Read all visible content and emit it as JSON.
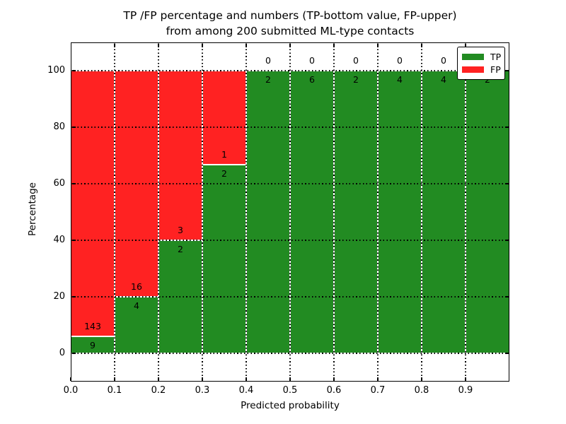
{
  "chart_data": {
    "type": "bar",
    "stacked": true,
    "title_line1": "TP /FP percentage and numbers (TP-bottom value, FP-upper)",
    "title_line2": "from among 200 submitted ML-type contacts",
    "xlabel": "Predicted probability",
    "ylabel": "Percentage",
    "xlim": [
      0,
      1.0
    ],
    "ylim": [
      -10,
      110
    ],
    "yticks": [
      0,
      20,
      40,
      60,
      80,
      100
    ],
    "xtick_labels": [
      "0.0",
      "0.1",
      "0.2",
      "0.3",
      "0.4",
      "0.5",
      "0.6",
      "0.7",
      "0.8",
      "0.9"
    ],
    "bin_starts": [
      0.0,
      0.1,
      0.2,
      0.3,
      0.4,
      0.5,
      0.6,
      0.7,
      0.8,
      0.9
    ],
    "bin_width": 0.1,
    "grid": "dotted both axes, drawn over bars",
    "bar_edge_color": "#ffffff",
    "series": [
      {
        "name": "TP",
        "color": "#228b22",
        "counts": [
          9,
          4,
          2,
          2,
          2,
          6,
          2,
          4,
          4,
          2
        ]
      },
      {
        "name": "FP",
        "color": "#ff2222",
        "counts": [
          143,
          16,
          3,
          1,
          0,
          0,
          0,
          0,
          0,
          0
        ]
      }
    ],
    "tp_percent_per_bin": [
      5.9,
      20.0,
      40.0,
      66.7,
      100.0,
      100.0,
      100.0,
      100.0,
      100.0,
      100.0
    ],
    "total_contacts_in_title": 200,
    "legend_position": "upper right"
  },
  "legend": {
    "tp_label": "TP",
    "fp_label": "FP"
  }
}
